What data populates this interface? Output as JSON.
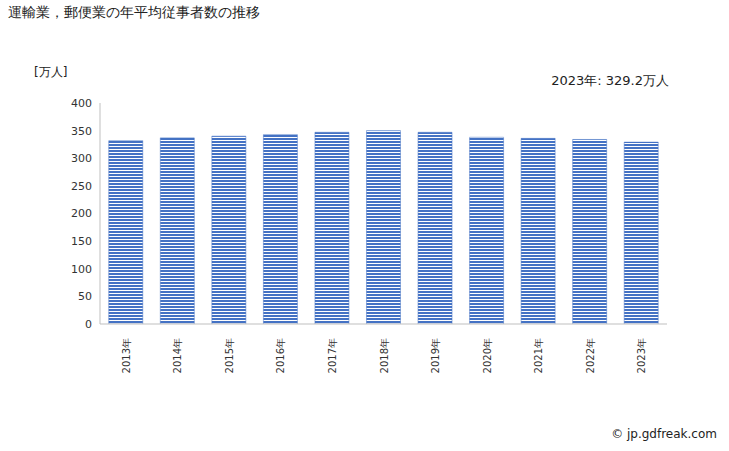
{
  "chart_data": {
    "type": "bar",
    "title": "運輸業，郵便業の年平均従事者数の推移",
    "y_label": "[万人]",
    "annotation": "2023年: 329.2万人",
    "source": "© jp.gdfreak.com",
    "categories": [
      "2013年",
      "2014年",
      "2015年",
      "2016年",
      "2017年",
      "2018年",
      "2019年",
      "2020年",
      "2021年",
      "2022年",
      "2023年"
    ],
    "values": [
      332,
      337,
      340,
      343,
      347,
      350,
      347,
      338,
      336,
      334,
      329.2
    ],
    "color": "#4472c4",
    "ylim": [
      0,
      400
    ],
    "yticks": [
      0,
      50,
      100,
      150,
      200,
      250,
      300,
      350,
      400
    ],
    "grid": false
  }
}
